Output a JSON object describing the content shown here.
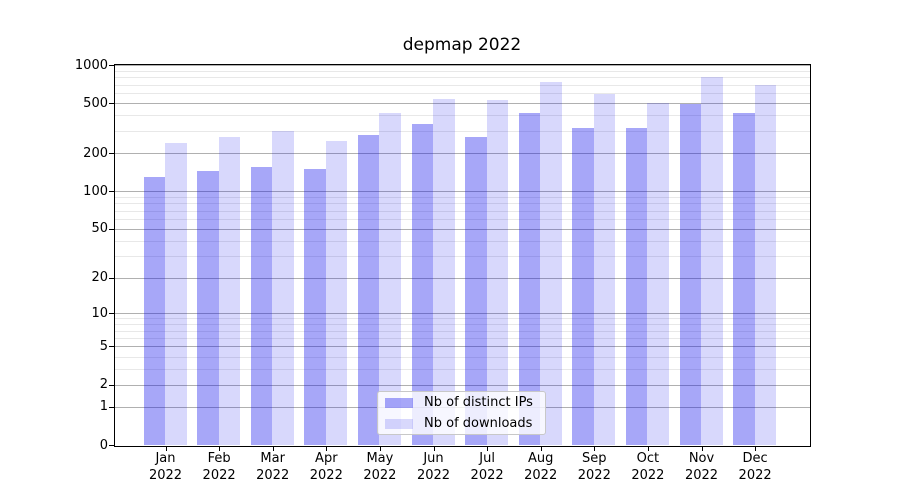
{
  "figure": {
    "background": "#ffffff"
  },
  "chart_data": {
    "type": "bar",
    "title": "depmap 2022",
    "x_year": "2022",
    "categories": [
      "Jan",
      "Feb",
      "Mar",
      "Apr",
      "May",
      "Jun",
      "Jul",
      "Aug",
      "Sep",
      "Oct",
      "Nov",
      "Dec"
    ],
    "series": [
      {
        "name": "Nb of distinct IPs",
        "color": "rgba(10,10,235,0.36)",
        "values": [
          130,
          145,
          155,
          150,
          280,
          340,
          270,
          420,
          320,
          320,
          490,
          420
        ]
      },
      {
        "name": "Nb of downloads",
        "color": "rgba(10,10,235,0.16)",
        "values": [
          240,
          270,
          300,
          250,
          420,
          540,
          530,
          730,
          590,
          500,
          800,
          700
        ]
      }
    ],
    "yscale": "log1p",
    "ylim": [
      0,
      1000
    ],
    "yticks": [
      1000,
      500,
      200,
      100,
      50,
      20,
      10,
      5,
      2,
      1,
      0
    ],
    "minor_gridlines": [
      3,
      4,
      6,
      7,
      8,
      9,
      30,
      40,
      60,
      70,
      80,
      90,
      300,
      400,
      600,
      700,
      800,
      900
    ],
    "legend_position": "lower center",
    "grid": {
      "major_color": "#b0b0b0",
      "minor_color": "#e8e8e8"
    }
  }
}
